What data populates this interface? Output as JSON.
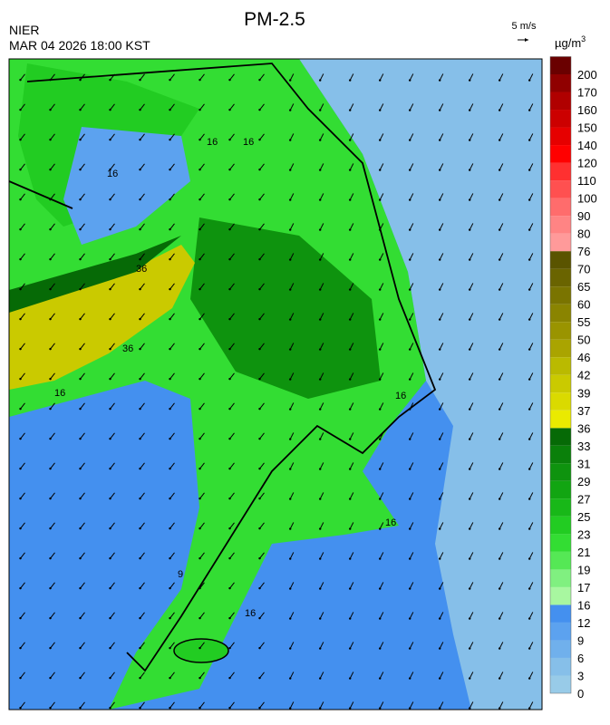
{
  "header": {
    "title": "PM-2.5",
    "agency": "NIER",
    "datetime": "MAR 04 2026 18:00 KST",
    "wind_scale": "5 m/s"
  },
  "legend": {
    "unit": "µg/m",
    "unit_power": "3",
    "levels": [
      0,
      3,
      6,
      9,
      12,
      16,
      17,
      19,
      21,
      23,
      25,
      27,
      29,
      31,
      33,
      36,
      37,
      39,
      42,
      46,
      50,
      55,
      60,
      65,
      70,
      76,
      80,
      90,
      100,
      110,
      120,
      140,
      150,
      160,
      170,
      200
    ],
    "colors": [
      "#98cbe8",
      "#86bfe9",
      "#70b0ec",
      "#5ca2ef",
      "#4490ef",
      "#a8f7a0",
      "#80f080",
      "#55e855",
      "#33dd33",
      "#22cc22",
      "#18b818",
      "#12a512",
      "#0e930e",
      "#0a800a",
      "#066a06",
      "#eaea00",
      "#dada00",
      "#caca00",
      "#baba00",
      "#aaa400",
      "#9a9400",
      "#8a8400",
      "#7a7400",
      "#6a6400",
      "#5a5400",
      "#ff9a9a",
      "#ff8484",
      "#ff6c6c",
      "#ff5050",
      "#ff3030",
      "#ff0000",
      "#e60000",
      "#cc0000",
      "#b00000",
      "#900000",
      "#6a0000"
    ]
  },
  "contour_labels": [
    "16",
    "16",
    "16",
    "36",
    "36",
    "16",
    "16",
    "16",
    "9",
    "16"
  ]
}
